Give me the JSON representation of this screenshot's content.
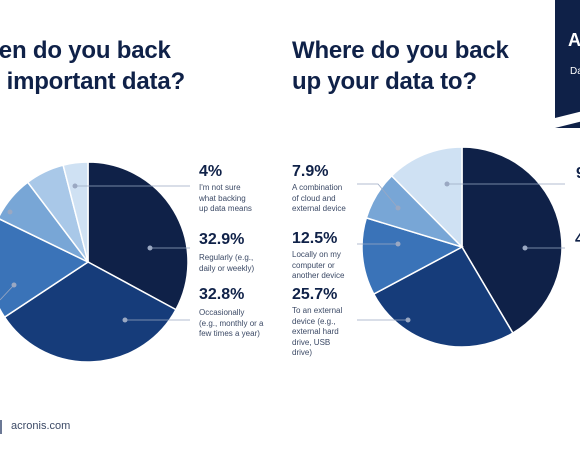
{
  "colors": {
    "navy": "#0f2148",
    "blue_dark": "#163c7a",
    "blue_mid": "#3a73b8",
    "blue_light": "#78a6d6",
    "blue_pale": "#a9c8e8",
    "blue_paler": "#cfe1f3",
    "text_muted": "#3c4a66"
  },
  "left_panel": {
    "title": "ten do you back\nr important data?",
    "labels": [
      {
        "value": "4%",
        "description": "I'm not sure\nwhat backing\nup data means"
      },
      {
        "value": "32.9%",
        "description": "Regularly (e.g.,\ndaily or weekly)"
      },
      {
        "value": "32.8%",
        "description": "Occasionally\n(e.g., monthly or a\nfew times a year)"
      }
    ]
  },
  "right_panel": {
    "title": "Where do you back\nup your data to?",
    "labels": [
      {
        "value": "7.9%",
        "description": "A combination\nof cloud and\nexternal device"
      },
      {
        "value": "12.5%",
        "description": "Locally on my\ncomputer or\nanother device"
      },
      {
        "value": "25.7%",
        "description": "To an external\ndevice (e.g.,\nexternal hard\ndrive, USB\ndrive)"
      }
    ],
    "cut_labels": [
      "9",
      "4"
    ]
  },
  "banner": {
    "letter": "A",
    "subtitle": "Da"
  },
  "footer": {
    "brand": "acronis.com"
  },
  "chart_data": [
    {
      "type": "pie",
      "title": "ten do you back r important data?",
      "slices": [
        {
          "label": "Regularly (e.g., daily or weekly)",
          "value": 32.9,
          "color": "#0f2148"
        },
        {
          "label": "Occasionally (e.g., monthly or a few times a year)",
          "value": 32.8,
          "color": "#163c7a"
        },
        {
          "label": "",
          "value": 16.5,
          "color": "#3a73b8"
        },
        {
          "label": "",
          "value": 7.5,
          "color": "#78a6d6"
        },
        {
          "label": "",
          "value": 6.3,
          "color": "#a9c8e8"
        },
        {
          "label": "I'm not sure what backing up data means",
          "value": 4,
          "color": "#cfe1f3"
        }
      ]
    },
    {
      "type": "pie",
      "title": "Where do you back up your data to?",
      "slices": [
        {
          "label": "",
          "value": 41.5,
          "color": "#0f2148"
        },
        {
          "label": "To an external device (e.g., external hard drive, USB drive)",
          "value": 25.7,
          "color": "#163c7a"
        },
        {
          "label": "Locally on my computer or another device",
          "value": 12.5,
          "color": "#3a73b8"
        },
        {
          "label": "A combination of cloud and external device",
          "value": 7.9,
          "color": "#78a6d6"
        },
        {
          "label": "",
          "value": 12.4,
          "color": "#cfe1f3"
        }
      ]
    }
  ]
}
